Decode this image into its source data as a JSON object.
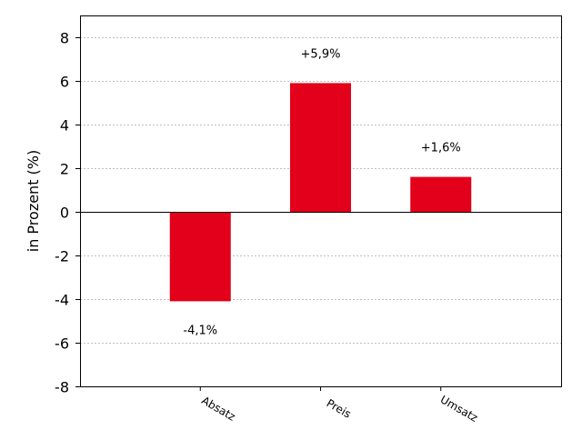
{
  "chart_data": {
    "type": "bar",
    "categories": [
      "Absatz",
      "Preis",
      "Umsatz"
    ],
    "values": [
      -4.1,
      5.9,
      1.6
    ],
    "data_labels": [
      "-4,1%",
      "+5,9%",
      "+1,6%"
    ],
    "title": "",
    "xlabel": "",
    "ylabel": "in Prozent (%)",
    "ylim": [
      -8,
      9
    ],
    "yticks": [
      "-8",
      "-6",
      "-4",
      "-2",
      "0",
      "2",
      "4",
      "6",
      "8"
    ],
    "ytick_values": [
      -8,
      -6,
      -4,
      -2,
      0,
      2,
      4,
      6,
      8
    ],
    "xlim": [
      -1,
      3
    ],
    "x_positions": [
      0,
      1,
      2
    ],
    "grid": true,
    "bar_color": "#e2001a",
    "grid_color": "#aaaaaa",
    "zero_line_color": "#000000"
  }
}
